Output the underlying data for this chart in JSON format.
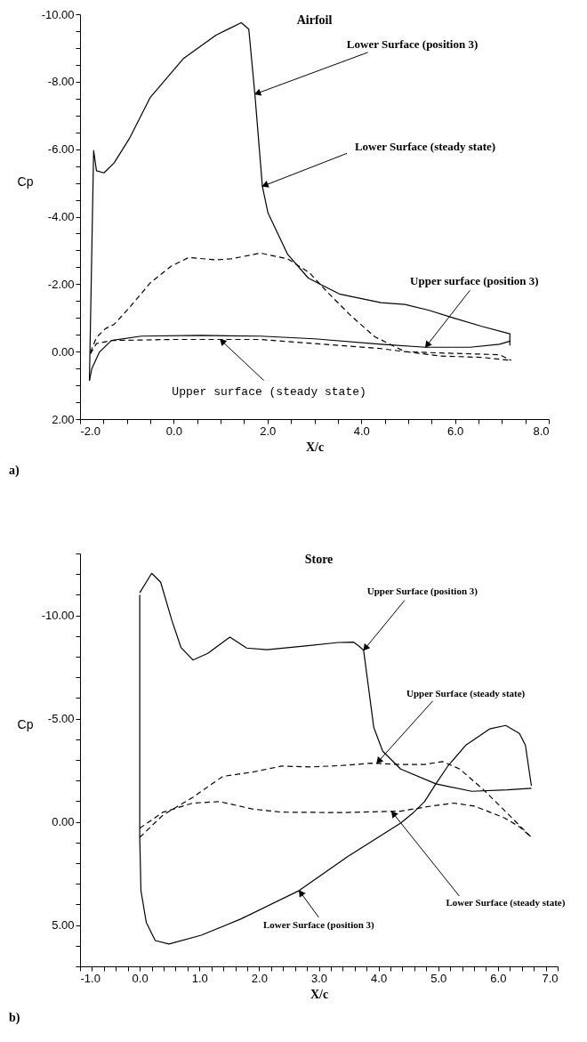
{
  "chart_data": [
    {
      "type": "line",
      "title": "Airfoil",
      "xlabel": "X/c",
      "ylabel": "Cp",
      "xlim": [
        -2.0,
        8.0
      ],
      "ylim": [
        2.0,
        -10.0
      ],
      "xticks": [
        {
          "value": -2,
          "label": "-2.0"
        },
        {
          "value": -1.5,
          "label": null
        },
        {
          "value": -1,
          "label": null
        },
        {
          "value": -0.5,
          "label": null
        },
        {
          "value": 0,
          "label": "0.0"
        },
        {
          "value": 0.5,
          "label": null
        },
        {
          "value": 1,
          "label": null
        },
        {
          "value": 1.5,
          "label": null
        },
        {
          "value": 2,
          "label": "2.0"
        },
        {
          "value": 2.5,
          "label": null
        },
        {
          "value": 3,
          "label": null
        },
        {
          "value": 3.5,
          "label": null
        },
        {
          "value": 4,
          "label": "4.0"
        },
        {
          "value": 4.5,
          "label": null
        },
        {
          "value": 5,
          "label": null
        },
        {
          "value": 5.5,
          "label": null
        },
        {
          "value": 6,
          "label": "6.0"
        },
        {
          "value": 6.5,
          "label": null
        },
        {
          "value": 7,
          "label": null
        },
        {
          "value": 7.5,
          "label": null
        },
        {
          "value": 8,
          "label": "8.0"
        }
      ],
      "yticks": [
        {
          "value": -10,
          "label": "-10.00"
        },
        {
          "value": -9.5,
          "label": null
        },
        {
          "value": -9,
          "label": null
        },
        {
          "value": -8.5,
          "label": null
        },
        {
          "value": -8,
          "label": "-8.00"
        },
        {
          "value": -7.5,
          "label": null
        },
        {
          "value": -7,
          "label": null
        },
        {
          "value": -6.5,
          "label": null
        },
        {
          "value": -6,
          "label": "-6.00"
        },
        {
          "value": -5.5,
          "label": null
        },
        {
          "value": -5,
          "label": null
        },
        {
          "value": -4.5,
          "label": null
        },
        {
          "value": -4,
          "label": "-4.00"
        },
        {
          "value": -3.5,
          "label": null
        },
        {
          "value": -3,
          "label": null
        },
        {
          "value": -2.5,
          "label": null
        },
        {
          "value": -2,
          "label": "-2.00"
        },
        {
          "value": -1.5,
          "label": null
        },
        {
          "value": -1,
          "label": null
        },
        {
          "value": -0.5,
          "label": null
        },
        {
          "value": 0,
          "label": "0.00"
        },
        {
          "value": 0.5,
          "label": null
        },
        {
          "value": 1,
          "label": null
        },
        {
          "value": 1.5,
          "label": null
        },
        {
          "value": 2,
          "label": "2.00"
        }
      ],
      "series": [
        {
          "color": "#000000",
          "line_style": "solid",
          "x": [
            -1.8,
            -1.71,
            -1.65,
            -1.49,
            -1.27,
            -0.95,
            -0.5,
            0.01,
            0.2,
            0.9,
            1.44,
            1.6,
            1.73,
            1.89,
            2.01,
            2.43,
            2.87,
            3.09,
            3.53,
            4.42,
            4.93,
            5.43,
            5.94,
            6.57,
            7.17,
            7.17
          ],
          "values": [
            0.86,
            -5.96,
            -5.36,
            -5.3,
            -5.6,
            -6.31,
            -7.54,
            -8.37,
            -8.68,
            -9.38,
            -9.75,
            -9.56,
            -7.63,
            -4.9,
            -4.11,
            -2.88,
            -2.18,
            -2.02,
            -1.71,
            -1.45,
            -1.4,
            -1.23,
            -1.01,
            -0.75,
            -0.53,
            -0.18
          ]
        },
        {
          "color": "#000000",
          "line_style": "solid",
          "x": [
            -1.8,
            -1.75,
            -1.59,
            -1.33,
            -0.69,
            0.58,
            1.85,
            3.0,
            4.42,
            5.37,
            6.32,
            6.95,
            7.17
          ],
          "values": [
            0.86,
            0.51,
            0.02,
            -0.33,
            -0.46,
            -0.48,
            -0.46,
            -0.38,
            -0.22,
            -0.13,
            -0.13,
            -0.22,
            -0.31
          ]
        },
        {
          "color": "#000000",
          "line_style": "dashed",
          "x": [
            -1.78,
            -1.65,
            -1.46,
            -1.27,
            -0.95,
            -0.5,
            -0.06,
            0.32,
            0.9,
            1.22,
            1.85,
            2.43,
            2.9,
            3.28,
            3.79,
            4.29,
            4.93,
            5.69,
            6.57,
            7.2
          ],
          "values": [
            0.02,
            -0.42,
            -0.68,
            -0.81,
            -1.3,
            -2.04,
            -2.53,
            -2.79,
            -2.72,
            -2.75,
            -2.92,
            -2.75,
            -2.33,
            -1.76,
            -1.05,
            -0.44,
            0.0,
            0.13,
            0.17,
            0.26
          ]
        },
        {
          "color": "#000000",
          "line_style": "dashed",
          "x": [
            -1.78,
            -1.65,
            -1.33,
            -0.06,
            1.85,
            3.0,
            4.42,
            4.93,
            5.69,
            6.95,
            7.2
          ],
          "values": [
            0.07,
            -0.24,
            -0.33,
            -0.36,
            -0.36,
            -0.24,
            -0.09,
            0.0,
            0.04,
            0.09,
            0.26
          ]
        }
      ],
      "annotations": [
        {
          "text": "Lower Surface (position 3)",
          "x": 1.73,
          "y": -7.63
        },
        {
          "text": "Lower Surface (steady state)",
          "x": 1.89,
          "y": -4.9
        },
        {
          "text": "Upper surface (position 3)",
          "x": 5.37,
          "y": -0.13
        },
        {
          "text": "Upper surface (steady state)",
          "x": 0.99,
          "y": -0.36
        },
        "a)"
      ]
    },
    {
      "type": "line",
      "title": "Store",
      "xlabel": "X/c",
      "ylabel": "Cp",
      "xlim": [
        -1.0,
        7.0
      ],
      "ylim": [
        7.0,
        -13.0
      ],
      "xticks": [
        {
          "value": -1,
          "label": "-1.0"
        },
        {
          "value": -0.8,
          "label": null
        },
        {
          "value": -0.6,
          "label": null
        },
        {
          "value": -0.4,
          "label": null
        },
        {
          "value": -0.2,
          "label": null
        },
        {
          "value": 0,
          "label": "0.0"
        },
        {
          "value": 0.2,
          "label": null
        },
        {
          "value": 0.4,
          "label": null
        },
        {
          "value": 0.6,
          "label": null
        },
        {
          "value": 0.8,
          "label": null
        },
        {
          "value": 1,
          "label": "1.0"
        },
        {
          "value": 1.2,
          "label": null
        },
        {
          "value": 1.4,
          "label": null
        },
        {
          "value": 1.6,
          "label": null
        },
        {
          "value": 1.8,
          "label": null
        },
        {
          "value": 2,
          "label": "2.0"
        },
        {
          "value": 2.2,
          "label": null
        },
        {
          "value": 2.4,
          "label": null
        },
        {
          "value": 2.6,
          "label": null
        },
        {
          "value": 2.8,
          "label": null
        },
        {
          "value": 3,
          "label": "3.0"
        },
        {
          "value": 3.2,
          "label": null
        },
        {
          "value": 3.4,
          "label": null
        },
        {
          "value": 3.6,
          "label": null
        },
        {
          "value": 3.8,
          "label": null
        },
        {
          "value": 4,
          "label": "4.0"
        },
        {
          "value": 4.2,
          "label": null
        },
        {
          "value": 4.4,
          "label": null
        },
        {
          "value": 4.6,
          "label": null
        },
        {
          "value": 4.8,
          "label": null
        },
        {
          "value": 5,
          "label": "5.0"
        },
        {
          "value": 5.2,
          "label": null
        },
        {
          "value": 5.4,
          "label": null
        },
        {
          "value": 5.6,
          "label": null
        },
        {
          "value": 5.8,
          "label": null
        },
        {
          "value": 6,
          "label": "6.0"
        },
        {
          "value": 6.2,
          "label": null
        },
        {
          "value": 6.4,
          "label": null
        },
        {
          "value": 6.6,
          "label": null
        },
        {
          "value": 6.8,
          "label": null
        },
        {
          "value": 7,
          "label": "7.0"
        }
      ],
      "yticks": [
        {
          "value": -13,
          "label": null
        },
        {
          "value": -12,
          "label": null
        },
        {
          "value": -11,
          "label": null
        },
        {
          "value": -10,
          "label": "-10.00"
        },
        {
          "value": -9,
          "label": null
        },
        {
          "value": -8,
          "label": null
        },
        {
          "value": -7,
          "label": null
        },
        {
          "value": -6,
          "label": null
        },
        {
          "value": -5,
          "label": "-5.00"
        },
        {
          "value": -4,
          "label": null
        },
        {
          "value": -3,
          "label": null
        },
        {
          "value": -2,
          "label": null
        },
        {
          "value": -1,
          "label": null
        },
        {
          "value": 0,
          "label": "0.00"
        },
        {
          "value": 1,
          "label": null
        },
        {
          "value": 2,
          "label": null
        },
        {
          "value": 3,
          "label": null
        },
        {
          "value": 4,
          "label": null
        },
        {
          "value": 5,
          "label": "5.00"
        },
        {
          "value": 6,
          "label": null
        },
        {
          "value": 7,
          "label": null
        }
      ],
      "series": [
        {
          "color": "#000000",
          "line_style": "solid",
          "x": [
            0.0,
            0.2,
            0.35,
            0.54,
            0.69,
            0.89,
            1.14,
            1.51,
            1.79,
            2.13,
            2.78,
            3.33,
            3.58,
            3.67,
            3.75,
            3.92,
            4.07,
            4.37,
            4.96,
            5.56,
            6.16,
            6.56
          ],
          "values": [
            -11.1,
            -12.04,
            -11.61,
            -9.74,
            -8.45,
            -7.84,
            -8.16,
            -8.95,
            -8.42,
            -8.34,
            -8.52,
            -8.69,
            -8.71,
            -8.52,
            -8.31,
            -4.57,
            -3.42,
            -2.56,
            -1.84,
            -1.48,
            -1.55,
            -1.63
          ]
        },
        {
          "color": "#000000",
          "line_style": "solid",
          "x": [
            0.0,
            0.0,
            0.02,
            0.11,
            0.26,
            0.49,
            1.03,
            1.69,
            2.67,
            3.48,
            4.37,
            4.57,
            4.77,
            4.96,
            5.16,
            5.46,
            5.86,
            6.13,
            6.36,
            6.46,
            6.56
          ],
          "values": [
            -11.0,
            0.75,
            3.33,
            4.88,
            5.75,
            5.92,
            5.49,
            4.71,
            3.33,
            1.69,
            0.06,
            -0.41,
            -0.98,
            -1.84,
            -2.7,
            -3.71,
            -4.5,
            -4.67,
            -4.28,
            -3.71,
            -1.75
          ]
        },
        {
          "color": "#000000",
          "line_style": "dashed",
          "x": [
            0.0,
            0.39,
            0.89,
            1.39,
            1.89,
            2.38,
            2.88,
            3.38,
            3.87,
            4.37,
            4.77,
            5.07,
            5.36,
            5.76,
            6.11,
            6.56
          ],
          "values": [
            0.75,
            -0.33,
            -1.19,
            -2.2,
            -2.41,
            -2.7,
            -2.66,
            -2.73,
            -2.84,
            -2.78,
            -2.78,
            -2.92,
            -2.56,
            -1.55,
            -0.55,
            0.75
          ]
        },
        {
          "color": "#000000",
          "line_style": "dashed",
          "x": [
            0.0,
            0.39,
            0.89,
            1.34,
            1.89,
            2.38,
            3.38,
            4.37,
            4.87,
            5.26,
            5.61,
            6.11,
            6.36,
            6.56
          ],
          "values": [
            0.31,
            -0.47,
            -0.91,
            -0.98,
            -0.62,
            -0.47,
            -0.45,
            -0.52,
            -0.76,
            -0.91,
            -0.76,
            -0.19,
            0.24,
            0.75
          ]
        }
      ],
      "annotations": [
        {
          "text": "Upper Surface (position 3)",
          "x": 3.75,
          "y": -8.31
        },
        {
          "text": "Upper Surface (steady state)",
          "x": 3.97,
          "y": -2.84
        },
        {
          "text": "Lower Surface (steady state)",
          "x": 4.22,
          "y": -0.5
        },
        {
          "text": "Lower Surface (position 3)",
          "x": 2.67,
          "y": 3.33
        },
        "b)"
      ]
    }
  ]
}
